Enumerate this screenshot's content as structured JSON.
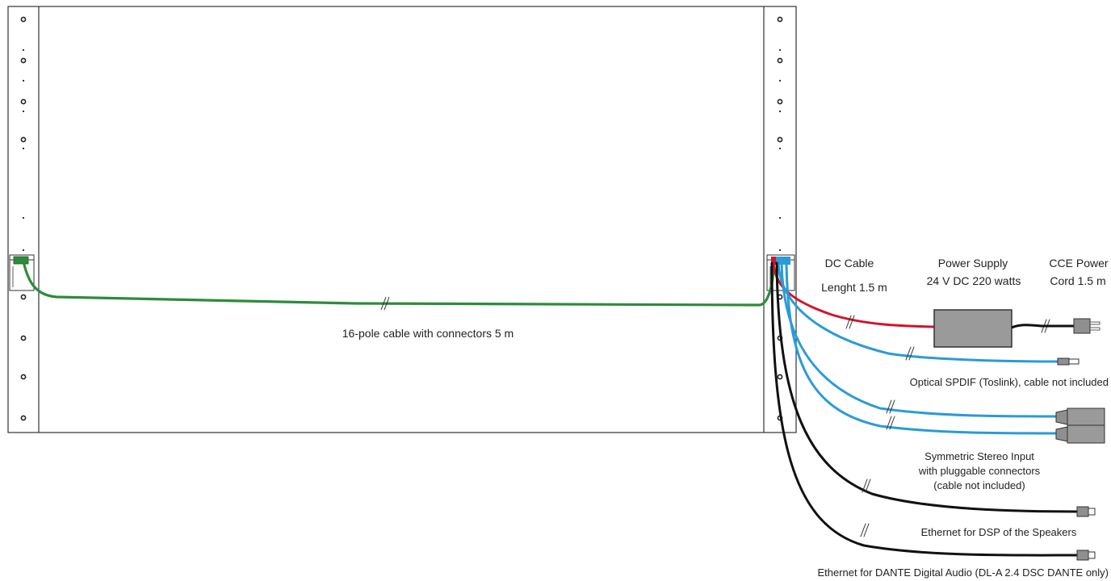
{
  "labels": {
    "main_cable": "16-pole cable with connectors 5 m",
    "dc_cable_title": "DC Cable",
    "dc_cable_length": "Lenght 1.5 m",
    "power_supply_title": "Power Supply",
    "power_supply_spec": "24 V DC 220 watts",
    "cce_power_line1": "CCE Power",
    "cce_power_line2": "Cord 1.5 m",
    "optical": "Optical SPDIF (Toslink), cable not included",
    "stereo_line1": "Symmetric Stereo Input",
    "stereo_line2": "with pluggable connectors",
    "stereo_line3": "(cable not included)",
    "ethernet_dsp": "Ethernet for DSP of the Speakers",
    "ethernet_dante": "Ethernet for DANTE Digital Audio (DL-A 2.4 DSC DANTE only)"
  },
  "colors": {
    "green_cable": "#2e8b3d",
    "red_cable": "#d0142c",
    "blue_cable": "#2a9bd7",
    "black_cable": "#111111",
    "power_box": "#9a9a9a",
    "connector_grey": "#8f8f8f"
  }
}
